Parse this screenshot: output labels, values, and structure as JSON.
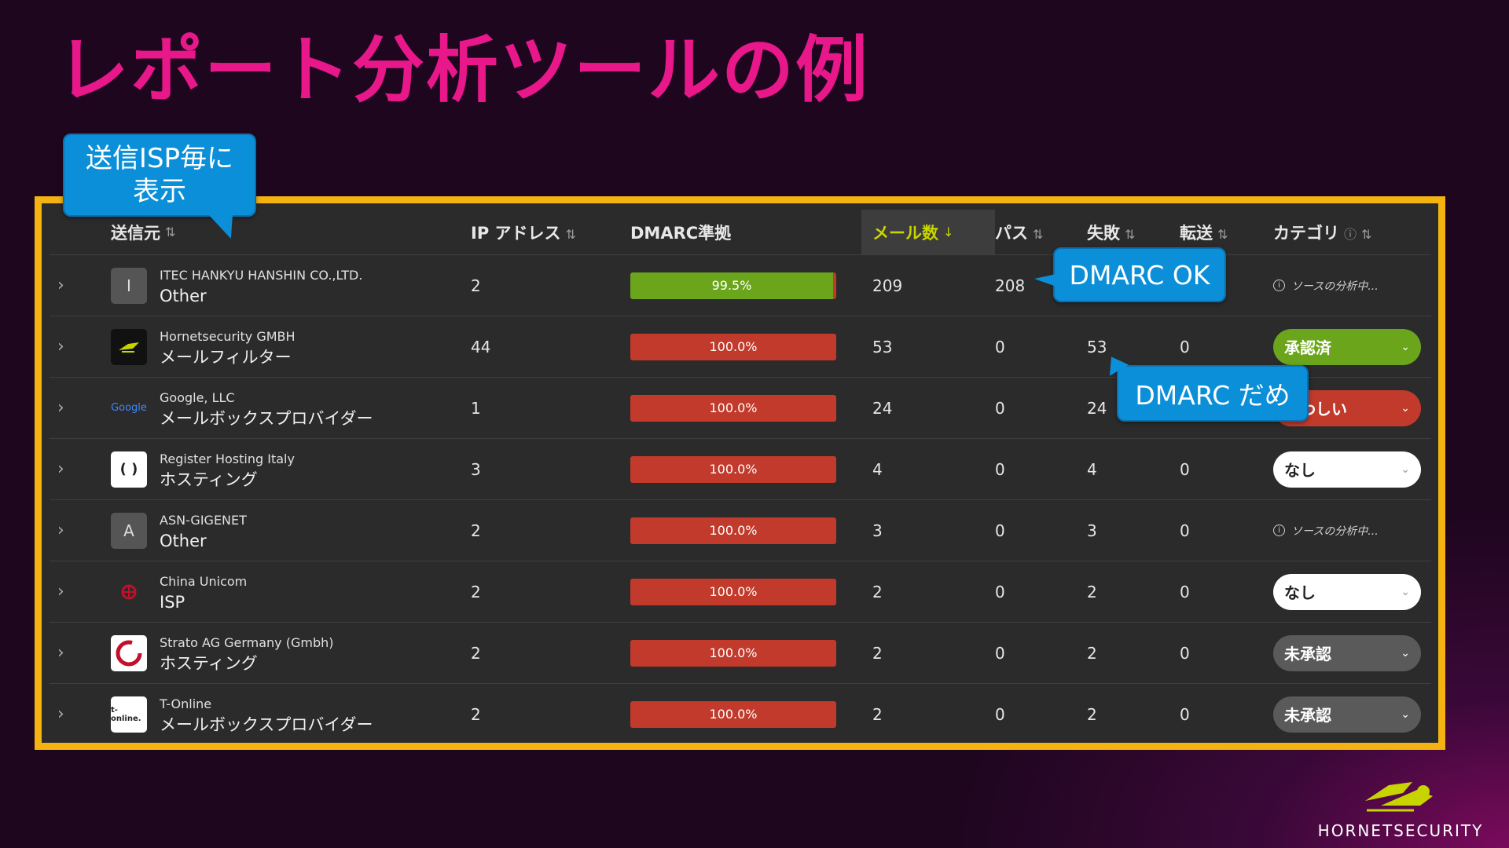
{
  "slide_title": "レポート分析ツールの例",
  "table": {
    "headers": {
      "source": "送信元",
      "ip": "IP アドレス",
      "dmarc": "DMARC準拠",
      "mail_count": "メール数",
      "pass": "パス",
      "fail": "失敗",
      "forward": "転送",
      "category": "カテゴリ"
    },
    "sort_icon": "⇅",
    "rows": [
      {
        "logo": "I",
        "name": "ITEC HANKYU HANSHIN CO.,LTD.",
        "type": "Other",
        "ip": "2",
        "dmarc": "99.5%",
        "dmarc_level": 0.995,
        "mail": "209",
        "pass": "208",
        "fail": "",
        "forward": "",
        "category": "ソースの分析中..."
      },
      {
        "logo": "",
        "name": "Hornetsecurity GMBH",
        "type": "メールフィルター",
        "ip": "44",
        "dmarc": "100.0%",
        "dmarc_level": 1.0,
        "mail": "53",
        "pass": "0",
        "fail": "53",
        "forward": "0",
        "category": "承認済"
      },
      {
        "logo": "Google",
        "name": "Google, LLC",
        "type": "メールボックスプロバイダー",
        "ip": "1",
        "dmarc": "100.0%",
        "dmarc_level": 1.0,
        "mail": "24",
        "pass": "0",
        "fail": "24",
        "forward": "",
        "category": "疑わしい"
      },
      {
        "logo": "( )",
        "name": "Register Hosting Italy",
        "type": "ホスティング",
        "ip": "3",
        "dmarc": "100.0%",
        "dmarc_level": 1.0,
        "mail": "4",
        "pass": "0",
        "fail": "4",
        "forward": "0",
        "category": "なし"
      },
      {
        "logo": "A",
        "name": "ASN-GIGENET",
        "type": "Other",
        "ip": "2",
        "dmarc": "100.0%",
        "dmarc_level": 1.0,
        "mail": "3",
        "pass": "0",
        "fail": "3",
        "forward": "0",
        "category": "ソースの分析中..."
      },
      {
        "logo": "",
        "name": "China Unicom",
        "type": "ISP",
        "ip": "2",
        "dmarc": "100.0%",
        "dmarc_level": 1.0,
        "mail": "2",
        "pass": "0",
        "fail": "2",
        "forward": "0",
        "category": "なし"
      },
      {
        "logo": "",
        "name": "Strato AG Germany (Gmbh)",
        "type": "ホスティング",
        "ip": "2",
        "dmarc": "100.0%",
        "dmarc_level": 1.0,
        "mail": "2",
        "pass": "0",
        "fail": "2",
        "forward": "0",
        "category": "未承認"
      },
      {
        "logo": "t-online.",
        "name": "T-Online",
        "type": "メールボックスプロバイダー",
        "ip": "2",
        "dmarc": "100.0%",
        "dmarc_level": 1.0,
        "mail": "2",
        "pass": "0",
        "fail": "2",
        "forward": "0",
        "category": "未承認"
      }
    ]
  },
  "callouts": {
    "isp": "送信ISP毎に\n表示",
    "dmarc_ok": "DMARC OK",
    "dmarc_bad": "DMARC だめ"
  },
  "brand": "HORNETSECURITY",
  "colors": {
    "title": "#e8178a",
    "frame": "#f5b312",
    "callout": "#0b8fd8",
    "pass_green": "#6ba51c",
    "fail_red": "#c13a2b",
    "active_header": "#c8d400"
  }
}
